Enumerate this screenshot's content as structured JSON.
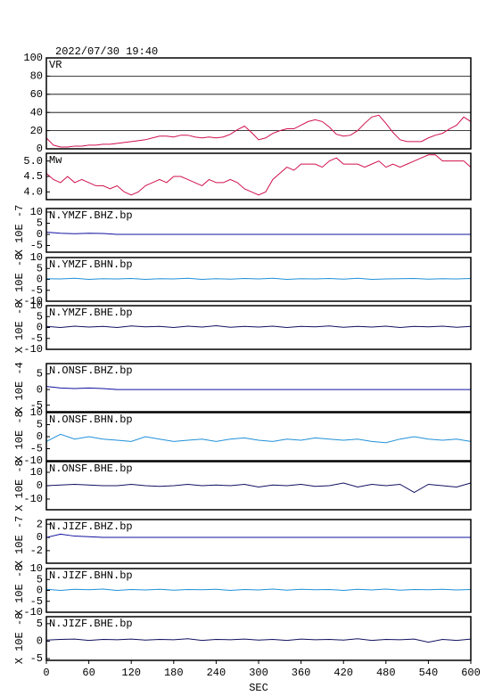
{
  "header": {
    "title": "2022/07/30 19:40"
  },
  "chart_data": [
    {
      "type": "line",
      "label": "VR",
      "grid": true,
      "xlim": [
        0,
        600
      ],
      "ylim": [
        0,
        100
      ],
      "yticks": [
        0,
        20,
        40,
        60,
        80,
        100
      ],
      "x": [
        0,
        10,
        20,
        30,
        40,
        50,
        60,
        70,
        80,
        90,
        100,
        110,
        120,
        130,
        140,
        150,
        160,
        170,
        180,
        190,
        200,
        210,
        220,
        230,
        240,
        250,
        260,
        270,
        280,
        290,
        300,
        310,
        320,
        330,
        340,
        350,
        360,
        370,
        380,
        390,
        400,
        410,
        420,
        430,
        440,
        450,
        460,
        470,
        480,
        490,
        500,
        510,
        520,
        530,
        540,
        550,
        560,
        570,
        580,
        590,
        600
      ],
      "series": [
        {
          "color": "#d0104c",
          "values": [
            12,
            4,
            2,
            2,
            3,
            3,
            4,
            4,
            5,
            5,
            6,
            7,
            8,
            9,
            10,
            12,
            14,
            14,
            13,
            15,
            15,
            13,
            12,
            13,
            12,
            13,
            16,
            21,
            25,
            18,
            10,
            12,
            17,
            20,
            22,
            22,
            26,
            30,
            32,
            30,
            24,
            16,
            14,
            15,
            20,
            28,
            35,
            37,
            28,
            18,
            10,
            8,
            8,
            8,
            12,
            15,
            17,
            22,
            26,
            35,
            30
          ]
        }
      ]
    },
    {
      "type": "line",
      "label": "Mw",
      "xlim": [
        0,
        600
      ],
      "ylim": [
        3.75,
        5.25
      ],
      "yticks": [
        {
          "value": 4,
          "label": "4.0"
        },
        4.5,
        {
          "value": 5,
          "label": "5.0"
        }
      ],
      "x": [
        0,
        10,
        20,
        30,
        40,
        50,
        60,
        70,
        80,
        90,
        100,
        110,
        120,
        130,
        140,
        150,
        160,
        170,
        180,
        190,
        200,
        210,
        220,
        230,
        240,
        250,
        260,
        270,
        280,
        290,
        300,
        310,
        320,
        330,
        340,
        350,
        360,
        370,
        380,
        390,
        400,
        410,
        420,
        430,
        440,
        450,
        460,
        470,
        480,
        490,
        500,
        510,
        520,
        530,
        540,
        550,
        560,
        570,
        580,
        590,
        600
      ],
      "series": [
        {
          "color": "#d0104c",
          "values": [
            4.6,
            4.4,
            4.3,
            4.5,
            4.3,
            4.4,
            4.3,
            4.2,
            4.2,
            4.1,
            4.2,
            4.0,
            3.9,
            4.0,
            4.2,
            4.3,
            4.4,
            4.3,
            4.5,
            4.5,
            4.4,
            4.3,
            4.2,
            4.4,
            4.3,
            4.3,
            4.4,
            4.3,
            4.1,
            4.0,
            3.9,
            4.0,
            4.4,
            4.6,
            4.8,
            4.7,
            4.9,
            4.9,
            4.9,
            4.8,
            5.0,
            5.1,
            4.9,
            4.9,
            4.9,
            4.8,
            4.9,
            5.0,
            4.8,
            4.9,
            4.8,
            4.9,
            5.0,
            5.1,
            5.2,
            5.2,
            5.0,
            5.0,
            5.0,
            5.0,
            4.8
          ]
        }
      ]
    },
    {
      "type": "line",
      "label": "N.YMZF.BHZ.bp",
      "ylabel": "X 10E -7",
      "xlim": [
        0,
        600
      ],
      "ylim": [
        -8,
        11.6
      ],
      "yticks": [
        -5,
        0,
        5,
        10
      ],
      "x": [
        0,
        20,
        40,
        60,
        80,
        100,
        120,
        140,
        160,
        180,
        200,
        220,
        240,
        260,
        280,
        300,
        320,
        340,
        360,
        380,
        400,
        420,
        440,
        460,
        480,
        500,
        520,
        540,
        560,
        580,
        600
      ],
      "series": [
        {
          "color": "#1010a0",
          "values": [
            1,
            0.5,
            0.3,
            0.5,
            0.4,
            0,
            0,
            0,
            0,
            0,
            0,
            0,
            0,
            0,
            0,
            0,
            0,
            0,
            0,
            0,
            0,
            0,
            0,
            0,
            0,
            0,
            0,
            0,
            0,
            0,
            0
          ]
        }
      ]
    },
    {
      "type": "line",
      "label": "N.YMZF.BHN.bp",
      "ylabel": "X 10E -8",
      "xlim": [
        0,
        600
      ],
      "ylim": [
        -10,
        10
      ],
      "yticks": [
        -10,
        -5,
        0,
        5,
        10
      ],
      "x": [
        0,
        20,
        40,
        60,
        80,
        100,
        120,
        140,
        160,
        180,
        200,
        220,
        240,
        260,
        280,
        300,
        320,
        340,
        360,
        380,
        400,
        420,
        440,
        460,
        480,
        500,
        520,
        540,
        560,
        580,
        600
      ],
      "series": [
        {
          "color": "#2090d8",
          "values": [
            0.3,
            0.2,
            0.5,
            0,
            0.3,
            0.2,
            0.4,
            0,
            0.3,
            0.2,
            0.5,
            0,
            0.3,
            0.1,
            0.4,
            0.2,
            0.5,
            0,
            0.3,
            0.2,
            0.4,
            0.1,
            0.5,
            0,
            0.2,
            0.3,
            0.4,
            0.1,
            0.3,
            0.2,
            0.4
          ]
        }
      ]
    },
    {
      "type": "line",
      "label": "N.YMZF.BHE.bp",
      "ylabel": "X 10E -8",
      "xlim": [
        0,
        600
      ],
      "ylim": [
        -10,
        10
      ],
      "yticks": [
        -10,
        -5,
        0,
        5,
        10
      ],
      "x": [
        0,
        20,
        40,
        60,
        80,
        100,
        120,
        140,
        160,
        180,
        200,
        220,
        240,
        260,
        280,
        300,
        320,
        340,
        360,
        380,
        400,
        420,
        440,
        460,
        480,
        500,
        520,
        540,
        560,
        580,
        600
      ],
      "series": [
        {
          "color": "#101060",
          "values": [
            0.5,
            0,
            0.6,
            0.2,
            0.5,
            0,
            0.7,
            0.3,
            0.5,
            0,
            0.6,
            0.2,
            0.8,
            0.1,
            0.5,
            0.2,
            0.6,
            0,
            0.5,
            0.3,
            0.7,
            0.1,
            0.5,
            0.2,
            0.6,
            0,
            0.5,
            0.3,
            0.6,
            0.1,
            0.5
          ]
        }
      ]
    },
    {
      "type": "line",
      "label": "N.ONSF.BHZ.bp",
      "ylabel": "X 10E -4",
      "xlim": [
        0,
        600
      ],
      "ylim": [
        -7.1,
        8.3
      ],
      "yticks": [
        -5,
        0,
        5
      ],
      "x": [
        0,
        20,
        40,
        60,
        80,
        100,
        120,
        140,
        160,
        180,
        200,
        220,
        240,
        260,
        280,
        300,
        320,
        340,
        360,
        380,
        400,
        420,
        440,
        460,
        480,
        500,
        520,
        540,
        560,
        580,
        600
      ],
      "series": [
        {
          "color": "#1010a0",
          "values": [
            1,
            0.5,
            0.3,
            0.5,
            0.3,
            0,
            0,
            0,
            0,
            0,
            0,
            0,
            0,
            0,
            0,
            0,
            0,
            0,
            0,
            0,
            0,
            0,
            0,
            0,
            0,
            0,
            0,
            0,
            0,
            0,
            0
          ]
        }
      ]
    },
    {
      "type": "line",
      "label": "N.ONSF.BHN.bp",
      "ylabel": "X 10E -8",
      "xlim": [
        0,
        600
      ],
      "ylim": [
        -10,
        10
      ],
      "yticks": [
        -10,
        -5,
        0,
        5,
        10
      ],
      "x": [
        0,
        20,
        40,
        60,
        80,
        100,
        120,
        140,
        160,
        180,
        200,
        220,
        240,
        260,
        280,
        300,
        320,
        340,
        360,
        380,
        400,
        420,
        440,
        460,
        480,
        500,
        520,
        540,
        560,
        580,
        600
      ],
      "series": [
        {
          "color": "#2090d8",
          "values": [
            -2,
            1,
            -1,
            0,
            -1,
            -1.5,
            -2,
            0,
            -1,
            -2,
            -1.5,
            -1,
            -2,
            -1,
            -0.5,
            -1.5,
            -2,
            -1,
            -1.5,
            -0.5,
            -1,
            -1.5,
            -1,
            -2,
            -2.5,
            -1,
            0,
            -1,
            -1.5,
            -1,
            -2
          ]
        }
      ]
    },
    {
      "type": "line",
      "label": "N.ONSF.BHE.bp",
      "ylabel": "X 10E -8",
      "xlim": [
        0,
        600
      ],
      "ylim": [
        -18,
        18
      ],
      "yticks": [
        -10,
        0,
        10
      ],
      "x": [
        0,
        20,
        40,
        60,
        80,
        100,
        120,
        140,
        160,
        180,
        200,
        220,
        240,
        260,
        280,
        300,
        320,
        340,
        360,
        380,
        400,
        420,
        440,
        460,
        480,
        500,
        520,
        540,
        560,
        580,
        600
      ],
      "series": [
        {
          "color": "#101060",
          "values": [
            0,
            0.5,
            1,
            0.5,
            0,
            0,
            1,
            0,
            -0.5,
            0,
            1,
            0,
            0.5,
            0,
            1,
            -1,
            0.5,
            0,
            1,
            -0.5,
            0,
            2,
            -1,
            1,
            0,
            1,
            -5,
            1,
            0,
            -1,
            2
          ]
        }
      ]
    },
    {
      "type": "line",
      "label": "N.JIZF.BHZ.bp",
      "ylabel": "X 10E -7",
      "xlim": [
        0,
        600
      ],
      "ylim": [
        -3.9,
        2.7
      ],
      "yticks": [
        -2,
        0,
        2
      ],
      "x": [
        0,
        20,
        40,
        60,
        80,
        100,
        120,
        140,
        160,
        180,
        200,
        220,
        240,
        260,
        280,
        300,
        320,
        340,
        360,
        380,
        400,
        420,
        440,
        460,
        480,
        500,
        520,
        540,
        560,
        580,
        600
      ],
      "series": [
        {
          "color": "#1010a0",
          "values": [
            0,
            0.5,
            0.2,
            0.1,
            0,
            0,
            0,
            0,
            0,
            0,
            0,
            0,
            0,
            0,
            0,
            0,
            0,
            0,
            0,
            0,
            0,
            0,
            0,
            0,
            0,
            0,
            0,
            0,
            0,
            0,
            0
          ]
        }
      ]
    },
    {
      "type": "line",
      "label": "N.JIZF.BHN.bp",
      "ylabel": "X 10E -8",
      "xlim": [
        0,
        600
      ],
      "ylim": [
        -10,
        10
      ],
      "yticks": [
        -10,
        -5,
        0,
        5,
        10
      ],
      "x": [
        0,
        20,
        40,
        60,
        80,
        100,
        120,
        140,
        160,
        180,
        200,
        220,
        240,
        260,
        280,
        300,
        320,
        340,
        360,
        380,
        400,
        420,
        440,
        460,
        480,
        500,
        520,
        540,
        560,
        580,
        600
      ],
      "series": [
        {
          "color": "#2090d8",
          "values": [
            0.5,
            0,
            0.5,
            0.3,
            0.6,
            0,
            0.4,
            0.2,
            0.5,
            0.1,
            0.4,
            0.3,
            0.5,
            0,
            0.4,
            0.2,
            0.6,
            0.1,
            0.5,
            0.3,
            0.4,
            0,
            0.5,
            0.2,
            0.6,
            0.1,
            0.4,
            0.3,
            0.5,
            0.2,
            0.4
          ]
        }
      ]
    },
    {
      "type": "line",
      "label": "N.JIZF.BHE.bp",
      "ylabel": "X 10E -8",
      "xlabel": "SEC",
      "xlim": [
        0,
        600
      ],
      "ylim": [
        -5.5,
        7
      ],
      "yticks": [
        -5,
        0,
        5
      ],
      "xticks": [
        0,
        60,
        120,
        180,
        240,
        300,
        360,
        420,
        480,
        540,
        600
      ],
      "x": [
        0,
        20,
        40,
        60,
        80,
        100,
        120,
        140,
        160,
        180,
        200,
        220,
        240,
        260,
        280,
        300,
        320,
        340,
        360,
        380,
        400,
        420,
        440,
        460,
        480,
        500,
        520,
        540,
        560,
        580,
        600
      ],
      "series": [
        {
          "color": "#101060",
          "values": [
            0.3,
            0.5,
            0.6,
            0.2,
            0.5,
            0.4,
            0.6,
            0.3,
            0.5,
            0.4,
            0.7,
            0.2,
            0.5,
            0.4,
            0.6,
            0.3,
            0.5,
            0.2,
            0.6,
            0.4,
            0.5,
            0.3,
            0.7,
            0.2,
            0.5,
            0.4,
            0.6,
            -0.3,
            0.5,
            0.2,
            0.6
          ]
        }
      ]
    }
  ]
}
